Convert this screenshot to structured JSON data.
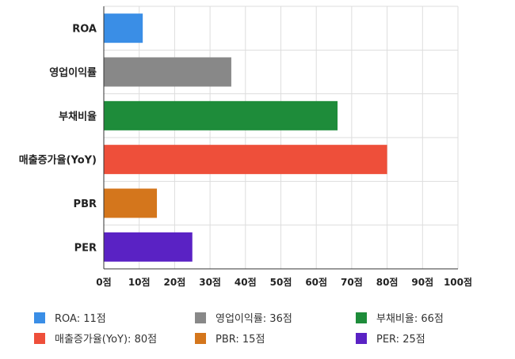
{
  "chart_data": {
    "type": "bar",
    "orientation": "horizontal",
    "categories": [
      "ROA",
      "영업이익률",
      "부채비율",
      "매출증가율(YoY)",
      "PBR",
      "PER"
    ],
    "values": [
      11,
      36,
      66,
      80,
      15,
      25
    ],
    "colors": [
      "#3a8ee6",
      "#888888",
      "#1e8c3a",
      "#ee4f3a",
      "#d4761c",
      "#5a22c4"
    ],
    "xlim": [
      0,
      100
    ],
    "xticks": [
      0,
      10,
      20,
      30,
      40,
      50,
      60,
      70,
      80,
      90,
      100
    ],
    "tick_suffix": "점",
    "grid": true,
    "legend": {
      "placement": "bottom",
      "entries": [
        "ROA: 11점",
        "영업이익률: 36점",
        "부채비율: 66점",
        "매출증가율(YoY): 80점",
        "PBR: 15점",
        "PER: 25점"
      ]
    }
  }
}
